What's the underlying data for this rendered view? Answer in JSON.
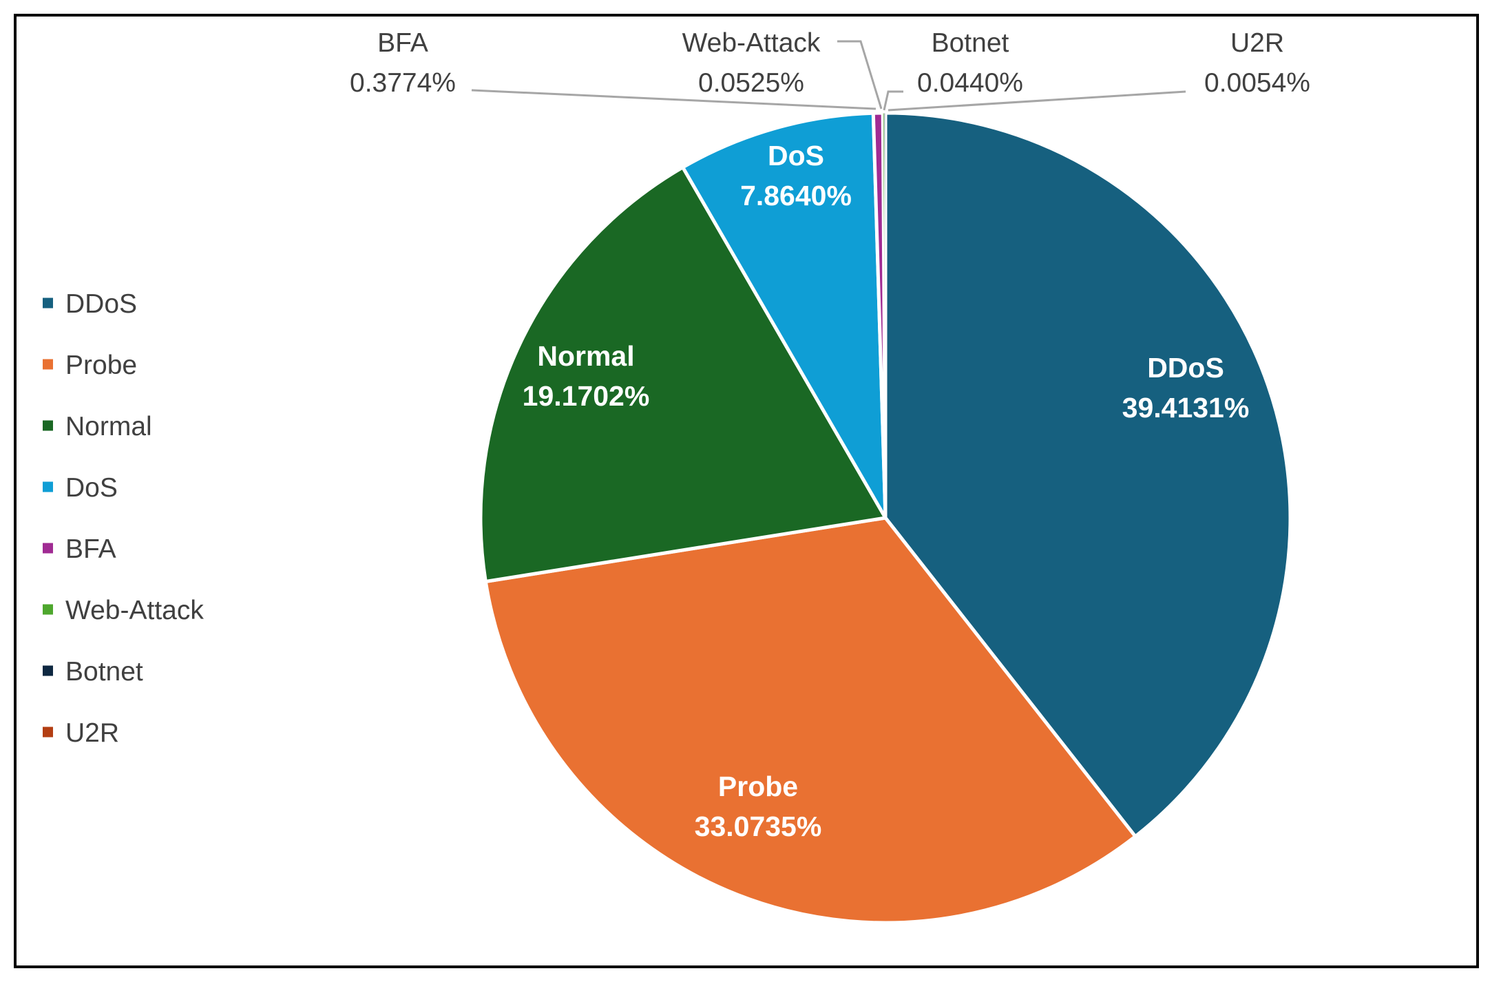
{
  "chart_data": {
    "type": "pie",
    "categories": [
      "DDoS",
      "Probe",
      "Normal",
      "DoS",
      "BFA",
      "Web-Attack",
      "Botnet",
      "U2R"
    ],
    "values": [
      39.4131,
      33.0735,
      19.1702,
      7.864,
      0.3774,
      0.0525,
      0.044,
      0.0054
    ],
    "data_labels": [
      "39.4131%",
      "33.0735%",
      "19.1702%",
      "7.8640%",
      "0.3774%",
      "0.0525%",
      "0.0440%",
      "0.0054%"
    ],
    "colors": [
      "#16607f",
      "#e97132",
      "#1a6824",
      "#0f9ed5",
      "#a02b93",
      "#4ea72e",
      "#0e2841",
      "#b33e12"
    ],
    "label_positions": [
      "inside",
      "inside",
      "inside",
      "inside",
      "outside",
      "outside",
      "outside",
      "outside"
    ],
    "legend_position": "left",
    "title": ""
  }
}
